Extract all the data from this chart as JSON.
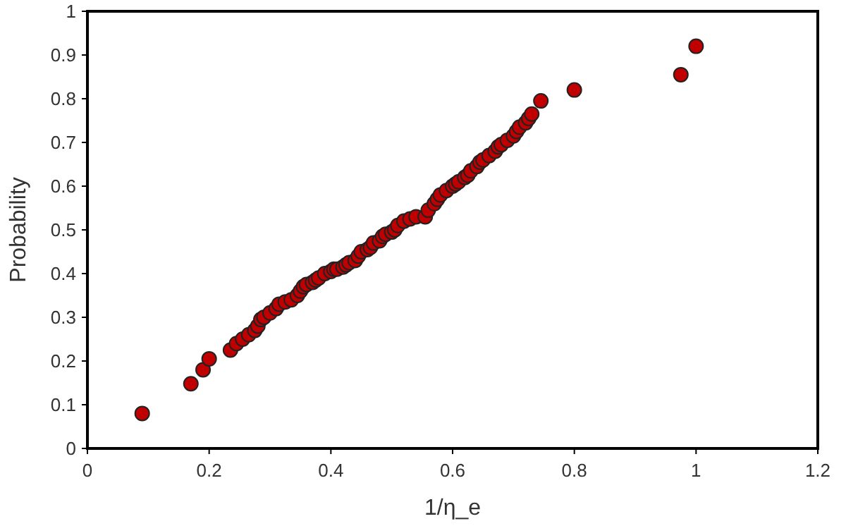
{
  "chart_data": {
    "type": "scatter",
    "xlabel": "1/η_e",
    "ylabel": "Probability",
    "xlim": [
      0,
      1.2
    ],
    "ylim": [
      0,
      1
    ],
    "xticks": [
      0,
      0.2,
      0.4,
      0.6,
      0.8,
      1,
      1.2
    ],
    "yticks": [
      0,
      0.1,
      0.2,
      0.3,
      0.4,
      0.5,
      0.6,
      0.7,
      0.8,
      0.9,
      1
    ],
    "marker": "circle",
    "series": [
      {
        "color": "#c00000",
        "x": [
          0.09,
          0.17,
          0.19,
          0.2,
          0.235,
          0.245,
          0.255,
          0.265,
          0.275,
          0.28,
          0.285,
          0.29,
          0.3,
          0.31,
          0.315,
          0.325,
          0.335,
          0.345,
          0.35,
          0.355,
          0.36,
          0.37,
          0.375,
          0.38,
          0.39,
          0.4,
          0.405,
          0.41,
          0.42,
          0.425,
          0.43,
          0.44,
          0.445,
          0.45,
          0.46,
          0.465,
          0.47,
          0.48,
          0.485,
          0.49,
          0.5,
          0.505,
          0.51,
          0.52,
          0.53,
          0.54,
          0.555,
          0.56,
          0.57,
          0.575,
          0.58,
          0.59,
          0.6,
          0.605,
          0.61,
          0.62,
          0.625,
          0.63,
          0.64,
          0.645,
          0.65,
          0.66,
          0.67,
          0.675,
          0.68,
          0.69,
          0.7,
          0.705,
          0.71,
          0.72,
          0.725,
          0.73,
          0.745,
          0.8,
          0.975,
          1.0
        ],
        "values": [
          0.08,
          0.148,
          0.18,
          0.205,
          0.225,
          0.24,
          0.25,
          0.26,
          0.27,
          0.28,
          0.295,
          0.3,
          0.31,
          0.32,
          0.33,
          0.335,
          0.34,
          0.35,
          0.36,
          0.37,
          0.375,
          0.38,
          0.385,
          0.39,
          0.4,
          0.405,
          0.41,
          0.41,
          0.415,
          0.42,
          0.425,
          0.43,
          0.44,
          0.45,
          0.455,
          0.46,
          0.47,
          0.475,
          0.485,
          0.49,
          0.495,
          0.5,
          0.51,
          0.52,
          0.525,
          0.53,
          0.53,
          0.545,
          0.56,
          0.57,
          0.58,
          0.59,
          0.6,
          0.605,
          0.61,
          0.62,
          0.625,
          0.635,
          0.645,
          0.655,
          0.66,
          0.67,
          0.68,
          0.69,
          0.695,
          0.705,
          0.715,
          0.725,
          0.735,
          0.745,
          0.755,
          0.765,
          0.795,
          0.82,
          0.855,
          0.92
        ]
      }
    ]
  }
}
